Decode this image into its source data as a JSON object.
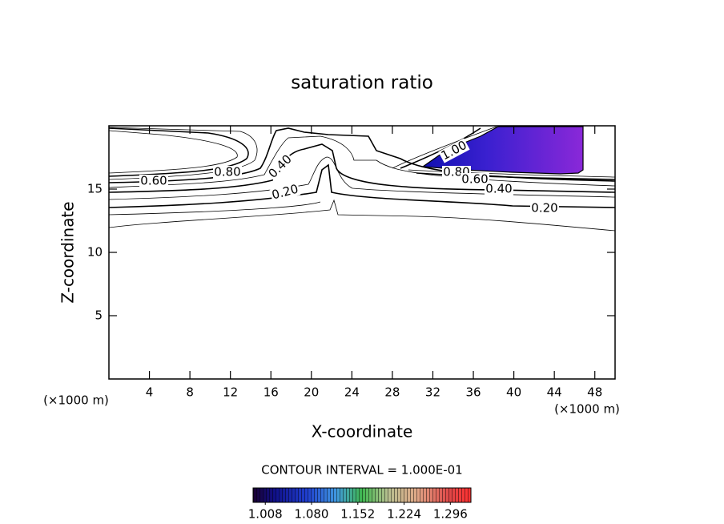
{
  "chart_data": {
    "type": "contour",
    "title": "saturation ratio",
    "x_label": "X-coordinate",
    "y_label": "Z-coordinate",
    "x_unit": "(×1000 m)",
    "y_unit": "(×1000 m)",
    "xlim": [
      0,
      50
    ],
    "ylim": [
      0,
      20
    ],
    "xticks": [
      4,
      8,
      12,
      16,
      20,
      24,
      28,
      32,
      36,
      40,
      44,
      48
    ],
    "yticks": [
      5,
      10,
      15
    ],
    "contour_interval_label": "CONTOUR INTERVAL = 1.000E-01",
    "contour_labels": [
      {
        "value": 0.6,
        "label": "0.60"
      },
      {
        "value": 0.8,
        "label": "0.80"
      },
      {
        "value": 0.4,
        "label": "0.40"
      },
      {
        "value": 0.2,
        "label": "0.20"
      },
      {
        "value": 1.0,
        "label": "1.00"
      },
      {
        "value": 0.8,
        "label": "0.80"
      },
      {
        "value": 0.6,
        "label": "0.60"
      },
      {
        "value": 0.4,
        "label": "0.40"
      },
      {
        "value": 0.2,
        "label": "0.20"
      }
    ],
    "colorbar": {
      "lim": [
        0.989,
        1.328
      ],
      "ticks": [
        1.008,
        {
          "value": 1.08,
          "label": "1.080"
        },
        1.152,
        1.224,
        1.296
      ]
    }
  }
}
